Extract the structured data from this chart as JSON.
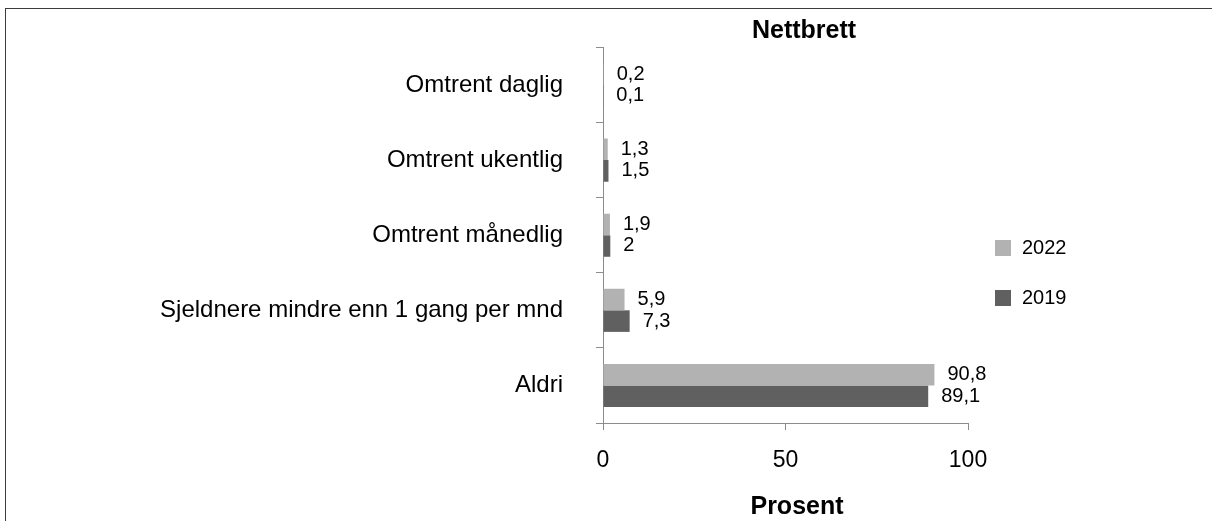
{
  "chart_data": {
    "type": "bar",
    "orientation": "horizontal",
    "title": "Nettbrett",
    "xlabel": "Prosent",
    "categories": [
      "Omtrent daglig",
      "Omtrent ukentlig",
      "Omtrent månedlig",
      "Sjeldnere mindre enn 1 gang per mnd",
      "Aldri"
    ],
    "series": [
      {
        "name": "2022",
        "color": "#b2b2b2",
        "values": [
          0.2,
          1.3,
          1.9,
          5.9,
          90.8
        ],
        "value_labels": [
          "0,2",
          "1,3",
          "1,9",
          "5,9",
          "90,8"
        ]
      },
      {
        "name": "2019",
        "color": "#606060",
        "values": [
          0.1,
          1.5,
          2,
          7.3,
          89.1
        ],
        "value_labels": [
          "0,1",
          "1,5",
          "2",
          "7,3",
          "89,1"
        ]
      }
    ],
    "xlim": [
      0,
      100
    ],
    "xticks": [
      0,
      50,
      100
    ],
    "legend": "right"
  }
}
